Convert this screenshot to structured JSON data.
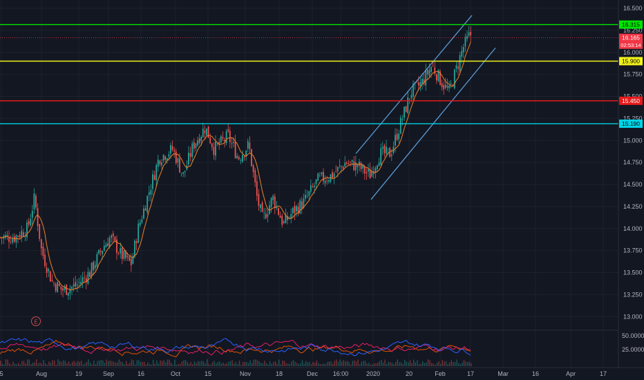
{
  "chart_data": {
    "type": "candlestick",
    "price_axis": {
      "ticks": [
        "16.500",
        "16.250",
        "16.000",
        "15.750",
        "15.500",
        "15.250",
        "15.000",
        "14.750",
        "14.500",
        "14.250",
        "14.000",
        "13.750",
        "13.500",
        "13.250",
        "13.000"
      ],
      "tick_values": [
        16.5,
        16.25,
        16.0,
        15.75,
        15.5,
        15.25,
        15.0,
        14.75,
        14.5,
        14.25,
        14.0,
        13.75,
        13.5,
        13.25,
        13.0
      ]
    },
    "time_axis": {
      "labels": [
        "5",
        "Aug",
        "19",
        "Sep",
        "16",
        "Oct",
        "15",
        "Nov",
        "18",
        "Dec",
        "16:00",
        "2020",
        "20",
        "Feb",
        "17",
        "Mar",
        "16",
        "Apr",
        "17"
      ]
    },
    "horizontal_levels": [
      {
        "label": "16.315",
        "value": 16.315,
        "color": "#00e600",
        "label_text_color": "#000000"
      },
      {
        "label": "15.900",
        "value": 15.9,
        "color": "#f2f21a",
        "label_text_color": "#000000"
      },
      {
        "label": "15.450",
        "value": 15.45,
        "color": "#e61a1a",
        "label_text_color": "#ffffff"
      },
      {
        "label": "15.190",
        "value": 15.19,
        "color": "#00d4e6",
        "label_text_color": "#000000"
      }
    ],
    "last_price": {
      "label": "16.165",
      "value": 16.165,
      "countdown": "02:53:14",
      "color": "#f23645"
    },
    "price_series": {
      "x": [
        0,
        20,
        40,
        50,
        60,
        75,
        90,
        110,
        130,
        150,
        160,
        175,
        190,
        200,
        215,
        230,
        250,
        265,
        280,
        297,
        310,
        330,
        345,
        360,
        372,
        380,
        395,
        410,
        425,
        440,
        460,
        480,
        500,
        520,
        535,
        550,
        565,
        580,
        595,
        610,
        625,
        640,
        650,
        660,
        670,
        680
      ],
      "close": [
        13.9,
        13.9,
        14.0,
        14.35,
        13.75,
        13.4,
        13.3,
        13.35,
        13.5,
        13.8,
        13.9,
        13.7,
        13.6,
        14.0,
        14.4,
        14.8,
        14.9,
        14.6,
        14.95,
        15.15,
        14.9,
        15.05,
        14.8,
        14.95,
        14.35,
        14.1,
        14.35,
        14.05,
        14.2,
        14.3,
        14.55,
        14.6,
        14.75,
        14.7,
        14.6,
        14.85,
        14.85,
        15.2,
        15.55,
        15.65,
        15.85,
        15.65,
        15.55,
        15.8,
        16.05,
        16.2
      ]
    },
    "channel": {
      "upper": [
        {
          "x": 515,
          "y": 14.85
        },
        {
          "x": 683,
          "y": 16.42
        }
      ],
      "lower": [
        {
          "x": 537,
          "y": 14.33
        },
        {
          "x": 717,
          "y": 16.05
        }
      ]
    },
    "oscillator": {
      "ticks": [
        "50.0000",
        "25.0000"
      ],
      "tick_values": [
        50,
        25
      ],
      "series_colors": [
        "#e65100",
        "#e91e63",
        "#2962ff"
      ]
    },
    "event_marker": {
      "label": "E"
    }
  }
}
